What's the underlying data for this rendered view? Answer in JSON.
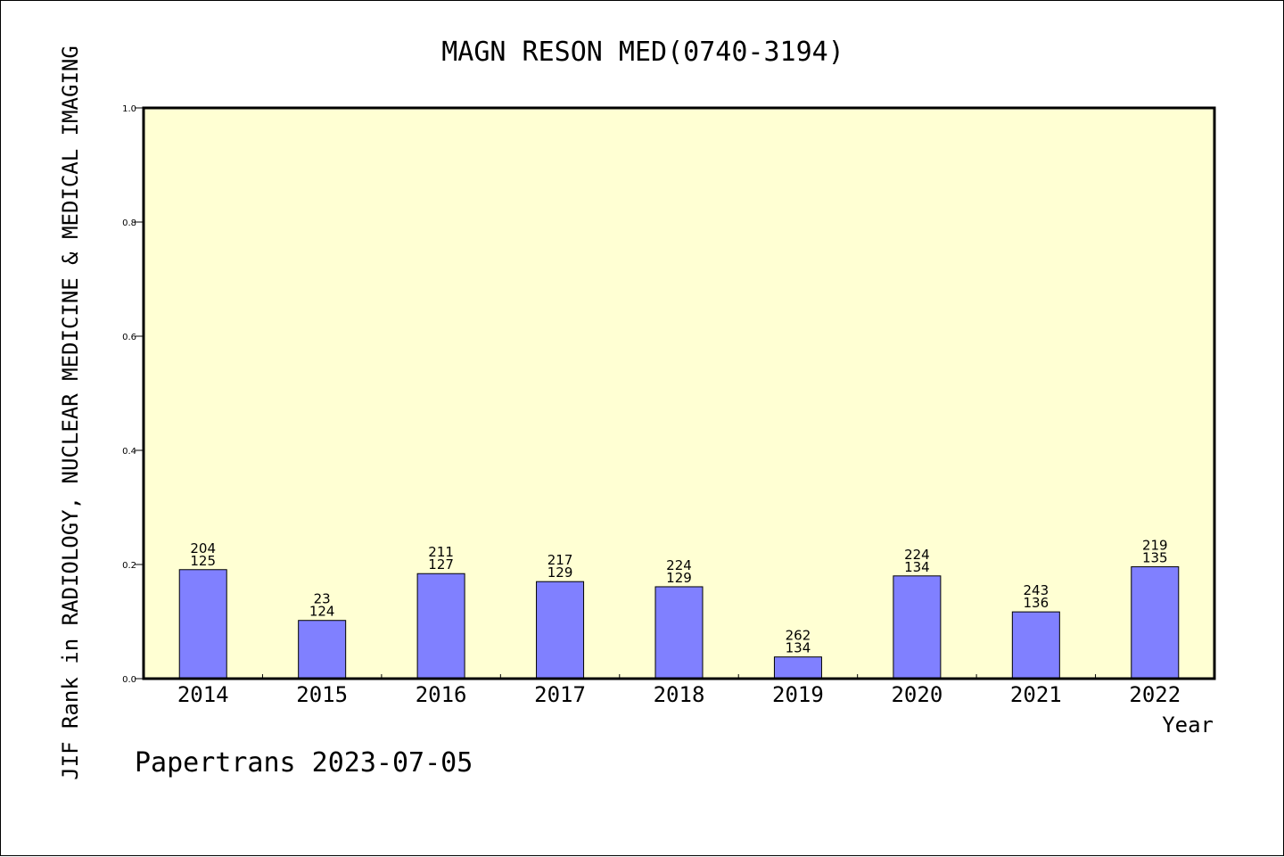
{
  "chart_data": {
    "type": "bar",
    "title": "MAGN RESON MED(0740-3194)",
    "xlabel": "Year",
    "ylabel": "JIF Rank in RADIOLOGY, NUCLEAR MEDICINE & MEDICAL IMAGING",
    "categories": [
      "2014",
      "2015",
      "2016",
      "2017",
      "2018",
      "2019",
      "2020",
      "2021",
      "2022"
    ],
    "values": [
      0.191,
      0.102,
      0.184,
      0.17,
      0.161,
      0.038,
      0.18,
      0.117,
      0.196
    ],
    "rank_labels": [
      "204",
      "23",
      "211",
      "217",
      "224",
      "262",
      "224",
      "243",
      "219"
    ],
    "total_labels": [
      "125",
      "124",
      "127",
      "129",
      "129",
      "134",
      "134",
      "136",
      "135"
    ],
    "ylim": [
      0,
      1.0
    ],
    "yticks": [
      "0.0",
      "0.2",
      "0.4",
      "0.6",
      "0.8",
      "1.0"
    ],
    "grid": false,
    "legend": "none",
    "colors": {
      "plot_bg": "#ffffd3",
      "bar_fill": "#8080ff",
      "axis": "#000000"
    }
  },
  "footer": "Papertrans 2023-07-05"
}
